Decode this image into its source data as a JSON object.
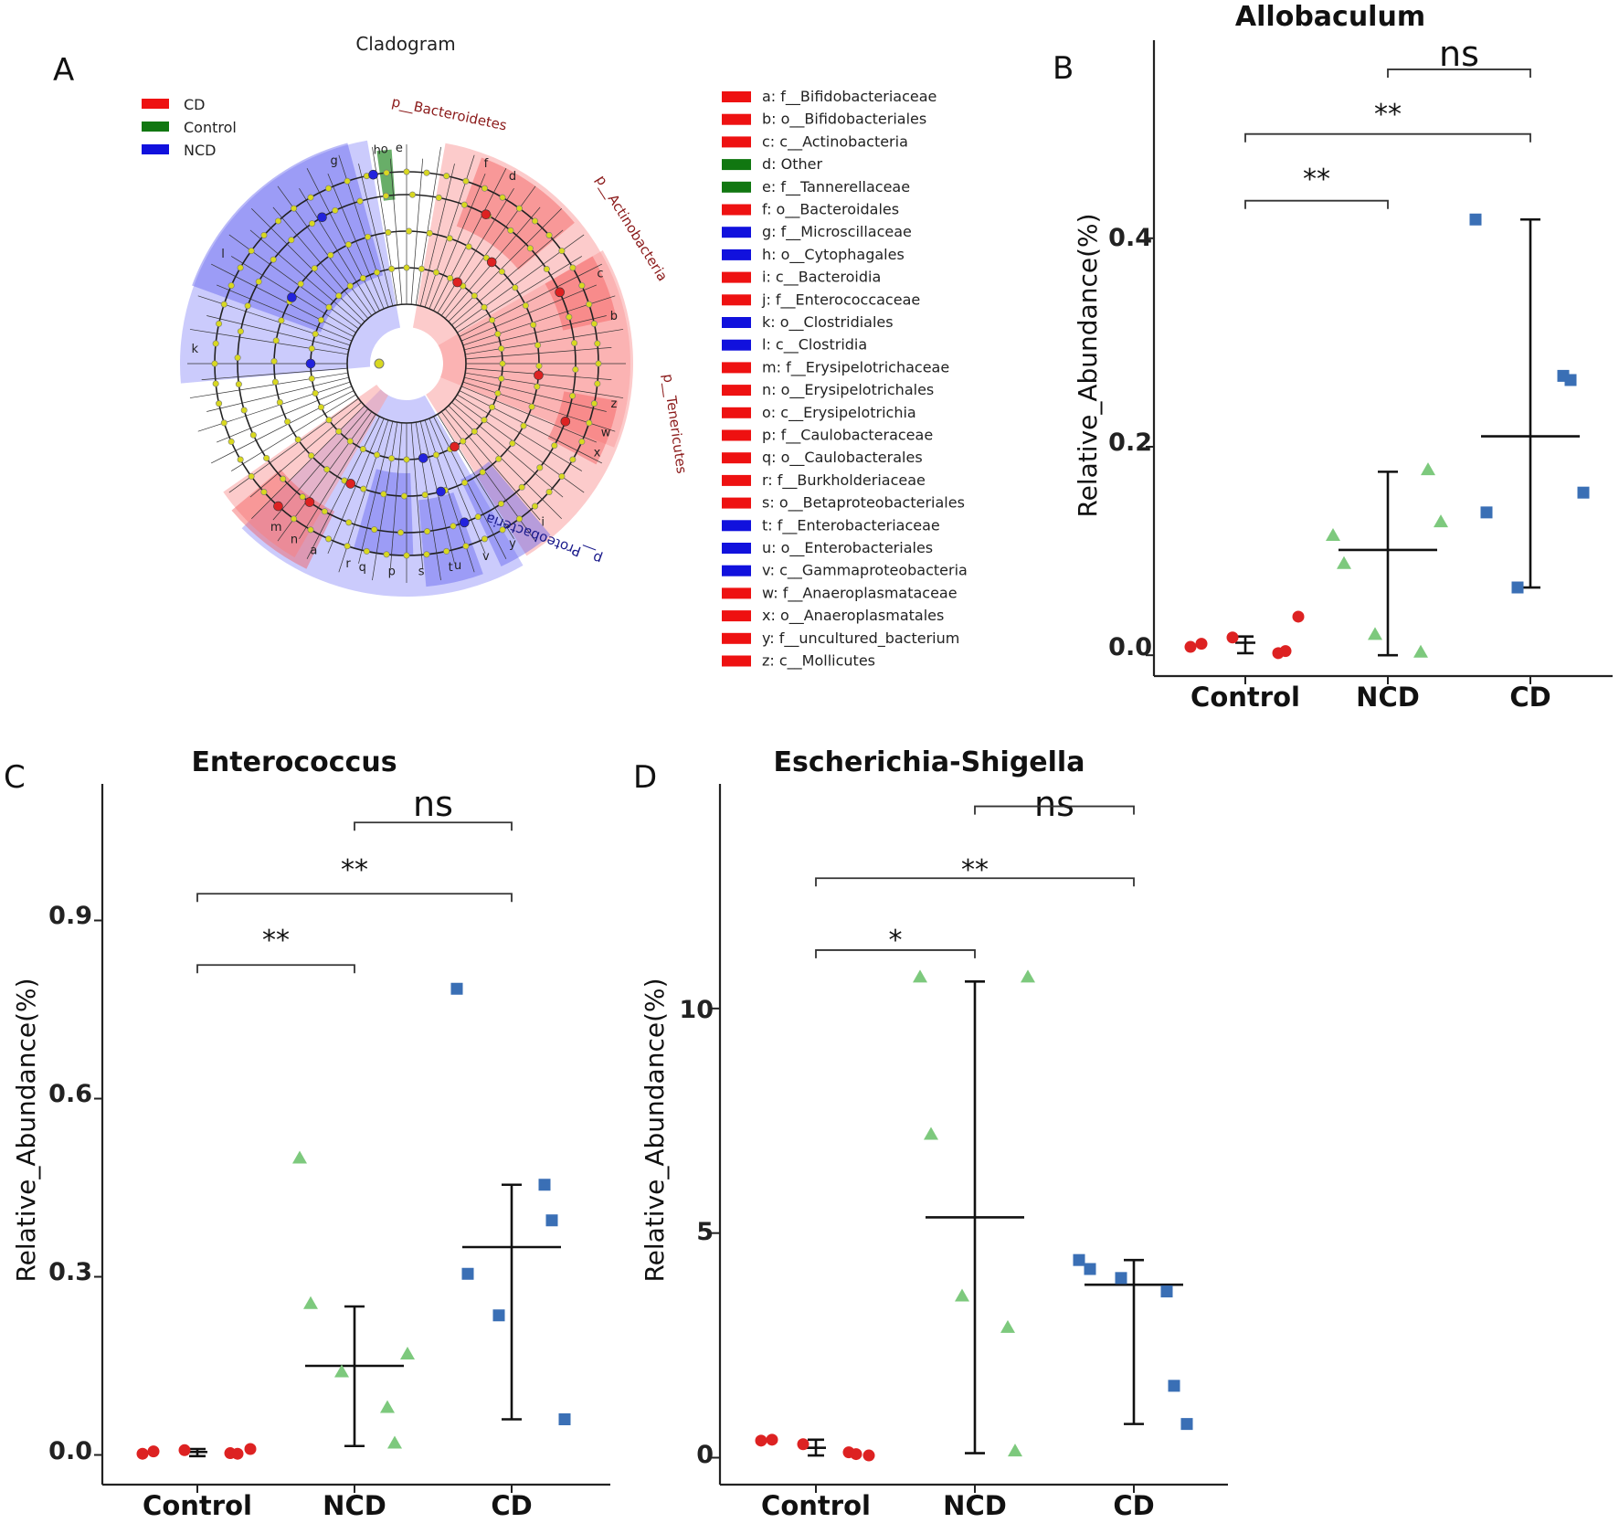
{
  "panels": {
    "A": "A",
    "B": "B",
    "C": "C",
    "D": "D"
  },
  "cladogram": {
    "title": "Cladogram",
    "group_legend": [
      {
        "label": "CD",
        "color": "#ee1111"
      },
      {
        "label": "Control",
        "color": "#117711"
      },
      {
        "label": "NCD",
        "color": "#1111dd"
      }
    ],
    "phylum_labels": [
      {
        "text": "p__Bacteroidetes",
        "color": "#8b1a1a"
      },
      {
        "text": "p__Actinobacteria",
        "color": "#8b1a1a"
      },
      {
        "text": "p__Tenericutes",
        "color": "#8b1a1a"
      },
      {
        "text": "p__Proteobacteria",
        "color": "#1a1a8b"
      }
    ],
    "sector_letters": [
      "h",
      "o",
      "e",
      "d",
      "f",
      "c",
      "b",
      "z",
      "w",
      "x",
      "y",
      "v",
      "u",
      "s",
      "p",
      "q",
      "r",
      "a",
      "k",
      "l",
      "n",
      "m",
      "g",
      "i",
      "t"
    ],
    "taxa": [
      {
        "label": "a: f__Bifidobacteriaceae",
        "color": "#ee1111"
      },
      {
        "label": "b: o__Bifidobacteriales",
        "color": "#ee1111"
      },
      {
        "label": "c: c__Actinobacteria",
        "color": "#ee1111"
      },
      {
        "label": "d: Other",
        "color": "#117711"
      },
      {
        "label": "e: f__Tannerellaceae",
        "color": "#117711"
      },
      {
        "label": "f: o__Bacteroidales",
        "color": "#ee1111"
      },
      {
        "label": "g: f__Microscillaceae",
        "color": "#1111dd"
      },
      {
        "label": "h: o__Cytophagales",
        "color": "#1111dd"
      },
      {
        "label": "i: c__Bacteroidia",
        "color": "#ee1111"
      },
      {
        "label": "j: f__Enterococcaceae",
        "color": "#ee1111"
      },
      {
        "label": "k: o__Clostridiales",
        "color": "#1111dd"
      },
      {
        "label": "l: c__Clostridia",
        "color": "#1111dd"
      },
      {
        "label": "m: f__Erysipelotrichaceae",
        "color": "#ee1111"
      },
      {
        "label": "n: o__Erysipelotrichales",
        "color": "#ee1111"
      },
      {
        "label": "o: c__Erysipelotrichia",
        "color": "#ee1111"
      },
      {
        "label": "p: f__Caulobacteraceae",
        "color": "#ee1111"
      },
      {
        "label": "q: o__Caulobacterales",
        "color": "#ee1111"
      },
      {
        "label": "r: f__Burkholderiaceae",
        "color": "#ee1111"
      },
      {
        "label": "s: o__Betaproteobacteriales",
        "color": "#ee1111"
      },
      {
        "label": "t: f__Enterobacteriaceae",
        "color": "#1111dd"
      },
      {
        "label": "u: o__Enterobacteriales",
        "color": "#1111dd"
      },
      {
        "label": "v: c__Gammaproteobacteria",
        "color": "#1111dd"
      },
      {
        "label": "w: f__Anaeroplasmataceae",
        "color": "#ee1111"
      },
      {
        "label": "x: o__Anaeroplasmatales",
        "color": "#ee1111"
      },
      {
        "label": "y: f__uncultured_bacterium",
        "color": "#ee1111"
      },
      {
        "label": "z: c__Mollicutes",
        "color": "#ee1111"
      }
    ]
  },
  "colors": {
    "Control": "#dd2222",
    "NCD": "#7dc97d",
    "CD": "#3a6fb5"
  },
  "chart_data": [
    {
      "panel": "B",
      "type": "scatter",
      "title": "Allobaculum",
      "ylabel": "Relative_Abundance(%)",
      "ylim": [
        -0.02,
        0.59
      ],
      "yticks": [
        0.0,
        0.2,
        0.4
      ],
      "tick_labels": [
        "0.0",
        "0.2",
        "0.4"
      ],
      "categories": [
        "Control",
        "NCD",
        "CD"
      ],
      "points": [
        {
          "group": "Control",
          "values": [
            0.008,
            0.011,
            0.017,
            0.002,
            0.004,
            0.037
          ]
        },
        {
          "group": "NCD",
          "values": [
            0.115,
            0.088,
            0.02,
            0.003,
            0.178,
            0.128
          ]
        },
        {
          "group": "CD",
          "values": [
            0.418,
            0.137,
            0.065,
            0.268,
            0.264,
            0.156
          ]
        }
      ],
      "summary": [
        {
          "group": "Control",
          "mean": 0.012,
          "low": 0.002,
          "high": 0.018
        },
        {
          "group": "NCD",
          "mean": 0.101,
          "low": 0.0,
          "high": 0.176
        },
        {
          "group": "CD",
          "mean": 0.21,
          "low": 0.065,
          "high": 0.418
        }
      ],
      "comparisons": [
        {
          "from": "Control",
          "to": "NCD",
          "label": "**",
          "y": 0.436
        },
        {
          "from": "Control",
          "to": "CD",
          "label": "**",
          "y": 0.5
        },
        {
          "from": "NCD",
          "to": "CD",
          "label": "ns",
          "y": 0.562
        }
      ]
    },
    {
      "panel": "C",
      "type": "scatter",
      "title": "Enterococcus",
      "ylabel": "Relative_Abundance(%)",
      "ylim": [
        -0.05,
        1.13
      ],
      "yticks": [
        0.0,
        0.3,
        0.6,
        0.9
      ],
      "tick_labels": [
        "0.0",
        "0.3",
        "0.6",
        "0.9"
      ],
      "categories": [
        "Control",
        "NCD",
        "CD"
      ],
      "points": [
        {
          "group": "Control",
          "values": [
            0.002,
            0.006,
            0.008,
            0.003,
            0.002,
            0.01
          ]
        },
        {
          "group": "NCD",
          "values": [
            0.5,
            0.255,
            0.14,
            0.08,
            0.02,
            0.17
          ]
        },
        {
          "group": "CD",
          "values": [
            0.785,
            0.305,
            0.235,
            0.455,
            0.395,
            0.06
          ]
        }
      ],
      "summary": [
        {
          "group": "Control",
          "mean": 0.005,
          "low": -0.002,
          "high": 0.01
        },
        {
          "group": "NCD",
          "mean": 0.15,
          "low": 0.015,
          "high": 0.25
        },
        {
          "group": "CD",
          "mean": 0.35,
          "low": 0.06,
          "high": 0.455
        }
      ],
      "comparisons": [
        {
          "from": "Control",
          "to": "NCD",
          "label": "**",
          "y": 0.825
        },
        {
          "from": "Control",
          "to": "CD",
          "label": "**",
          "y": 0.945
        },
        {
          "from": "NCD",
          "to": "CD",
          "label": "ns",
          "y": 1.065
        }
      ]
    },
    {
      "panel": "D",
      "type": "scatter",
      "title": "Escherichia-Shigella",
      "ylabel": "Relative_Abundance(%)",
      "ylim": [
        -0.6,
        15.0
      ],
      "yticks": [
        0,
        5,
        10
      ],
      "tick_labels": [
        "0",
        "5",
        "10"
      ],
      "categories": [
        "Control",
        "NCD",
        "CD"
      ],
      "points": [
        {
          "group": "Control",
          "values": [
            0.38,
            0.4,
            0.3,
            0.12,
            0.08,
            0.05
          ]
        },
        {
          "group": "NCD",
          "values": [
            10.7,
            7.2,
            3.6,
            2.9,
            0.15,
            10.7
          ]
        },
        {
          "group": "CD",
          "values": [
            4.4,
            4.2,
            4.0,
            3.7,
            1.6,
            0.75
          ]
        }
      ],
      "summary": [
        {
          "group": "Control",
          "mean": 0.22,
          "low": 0.05,
          "high": 0.4
        },
        {
          "group": "NCD",
          "mean": 5.35,
          "low": 0.1,
          "high": 10.6
        },
        {
          "group": "CD",
          "mean": 3.85,
          "low": 0.75,
          "high": 4.4
        }
      ],
      "comparisons": [
        {
          "from": "Control",
          "to": "NCD",
          "label": "*",
          "y": 11.3
        },
        {
          "from": "Control",
          "to": "CD",
          "label": "**",
          "y": 12.9
        },
        {
          "from": "NCD",
          "to": "CD",
          "label": "ns",
          "y": 14.5
        }
      ]
    }
  ]
}
